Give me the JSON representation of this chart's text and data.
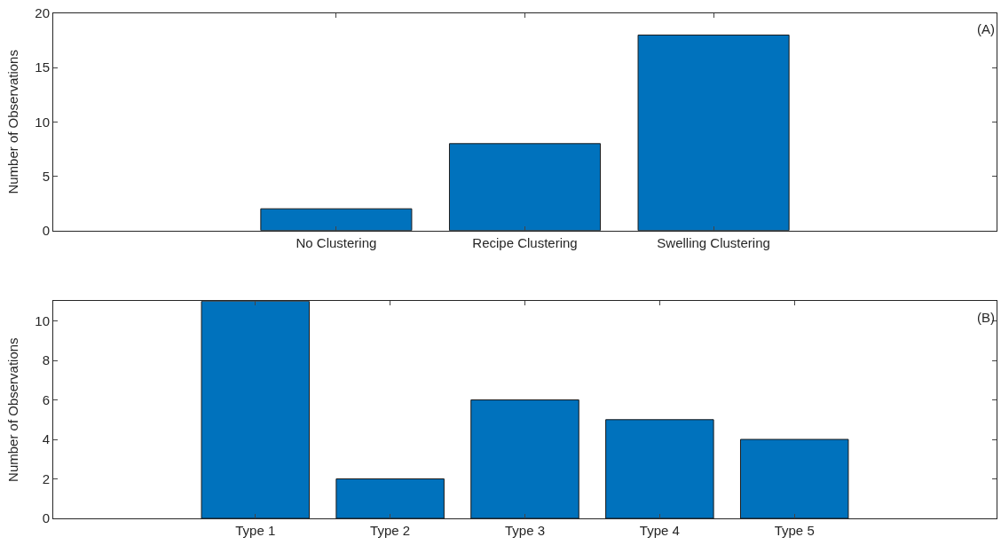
{
  "chart_data": [
    {
      "type": "bar",
      "ylabel": "Number of Observations",
      "categories": [
        null,
        "No Clustering",
        "Recipe Clustering",
        "Swelling Clustering",
        null
      ],
      "values": [
        null,
        2,
        8,
        18,
        null
      ],
      "color": "#0072bd",
      "ylim": [
        0,
        20
      ],
      "yticks": [
        0,
        5,
        10,
        15,
        20
      ],
      "annotations": [
        "(A)"
      ]
    },
    {
      "type": "bar",
      "ylabel": "Number of Observations",
      "categories": [
        null,
        "Type 1",
        "Type 2",
        "Type 3",
        "Type 4",
        "Type 5",
        null
      ],
      "values": [
        null,
        11,
        2,
        6,
        5,
        4,
        null
      ],
      "color": "#0072bd",
      "ylim": [
        0,
        11
      ],
      "yticks": [
        0,
        2,
        4,
        6,
        8,
        10
      ],
      "annotations": [
        "(B)"
      ]
    }
  ]
}
